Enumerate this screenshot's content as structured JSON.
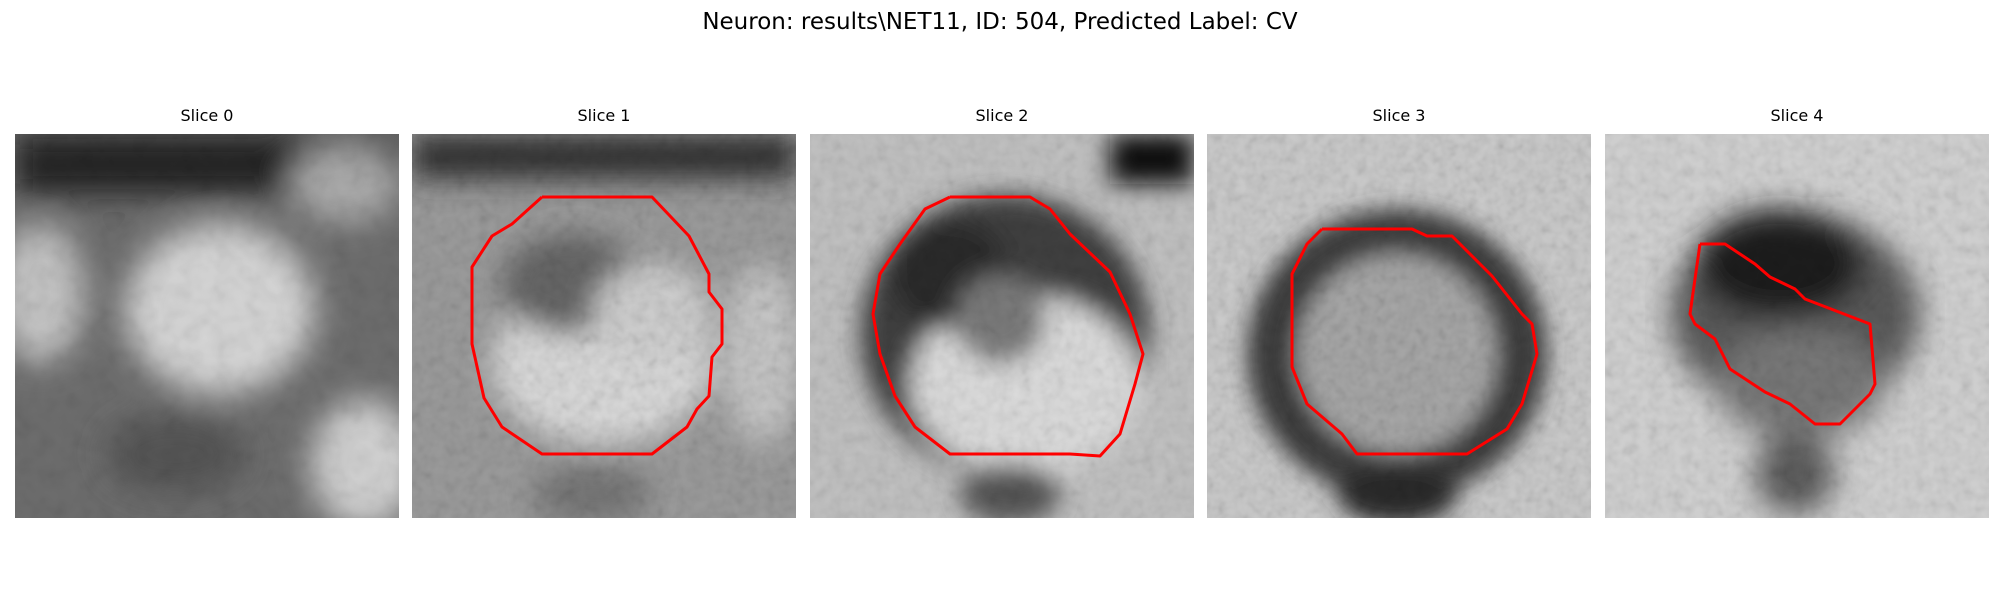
{
  "figure": {
    "title": "Neuron: results\\NET11, ID: 504, Predicted Label: CV"
  },
  "contour_color": "#ff0000",
  "colormap": "gray",
  "slices": [
    {
      "title": "Slice 0",
      "has_contour": false
    },
    {
      "title": "Slice 1",
      "has_contour": true
    },
    {
      "title": "Slice 2",
      "has_contour": true
    },
    {
      "title": "Slice 3",
      "has_contour": true
    },
    {
      "title": "Slice 4",
      "has_contour": true
    }
  ]
}
